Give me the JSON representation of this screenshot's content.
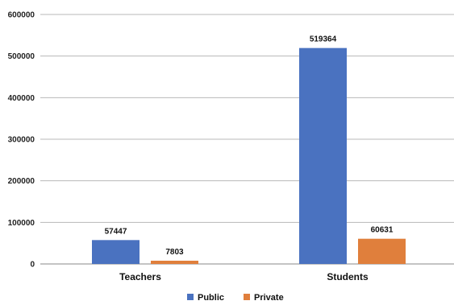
{
  "chart_data": {
    "type": "bar",
    "title": "",
    "xlabel": "",
    "ylabel": "",
    "categories": [
      "Teachers",
      "Students"
    ],
    "series": [
      {
        "name": "Public",
        "values": [
          57447,
          519364
        ],
        "color": "#4a72c0"
      },
      {
        "name": "Private",
        "values": [
          7803,
          60631
        ],
        "color": "#e07f3c"
      }
    ],
    "ylim": [
      0,
      600000
    ],
    "yticks": [
      0,
      100000,
      200000,
      300000,
      400000,
      500000,
      600000
    ],
    "ytick_labels": [
      "0",
      "100000",
      "200000",
      "300000",
      "400000",
      "500000",
      "600000"
    ],
    "grid": true,
    "legend_position": "bottom-center",
    "data_labels": [
      "57447",
      "7803",
      "519364",
      "60631"
    ]
  }
}
